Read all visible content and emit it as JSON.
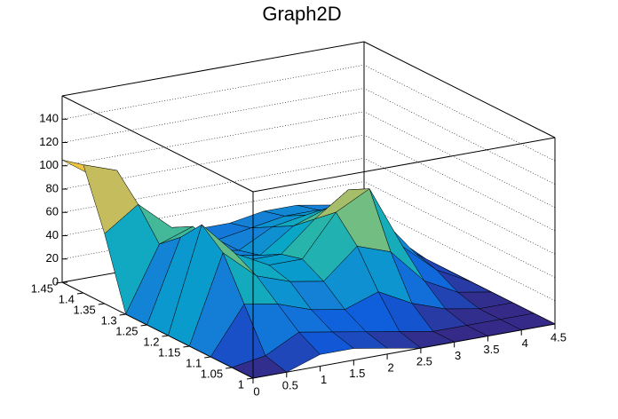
{
  "chart_data": {
    "type": "surface",
    "title": "Graph2D",
    "x": [
      0,
      0.5,
      1,
      1.5,
      2,
      2.5,
      3,
      3.5,
      4,
      4.5
    ],
    "y": [
      1,
      1.05,
      1.1,
      1.15,
      1.2,
      1.25,
      1.3,
      1.35,
      1.4,
      1.45
    ],
    "z": [
      [
        0,
        0,
        10,
        10,
        5,
        0,
        0,
        0,
        0,
        0
      ],
      [
        0,
        5,
        20,
        15,
        10,
        5,
        0,
        0,
        0,
        0
      ],
      [
        0,
        40,
        35,
        25,
        20,
        30,
        15,
        5,
        0,
        0
      ],
      [
        0,
        75,
        50,
        40,
        35,
        60,
        50,
        20,
        5,
        0
      ],
      [
        0,
        90,
        60,
        45,
        45,
        80,
        95,
        40,
        15,
        0
      ],
      [
        0,
        70,
        60,
        40,
        40,
        65,
        85,
        55,
        20,
        0
      ],
      [
        0,
        55,
        65,
        35,
        30,
        50,
        60,
        45,
        25,
        0
      ],
      [
        60,
        80,
        55,
        30,
        25,
        40,
        45,
        40,
        30,
        0
      ],
      [
        110,
        100,
        45,
        30,
        25,
        30,
        35,
        35,
        30,
        0
      ],
      [
        105,
        85,
        40,
        30,
        25,
        25,
        30,
        30,
        25,
        0
      ]
    ],
    "xlim": [
      0,
      4.5
    ],
    "ylim": [
      1,
      1.45
    ],
    "zlim": [
      0,
      160
    ],
    "xticks": [
      0,
      0.5,
      1,
      1.5,
      2,
      2.5,
      3,
      3.5,
      4,
      4.5
    ],
    "yticks": [
      1,
      1.05,
      1.1,
      1.15,
      1.2,
      1.25,
      1.3,
      1.35,
      1.4,
      1.45
    ],
    "zticks": [
      0,
      20,
      40,
      60,
      80,
      100,
      120,
      140
    ],
    "grid": true,
    "colormap": [
      "#352a87",
      "#0f5cdd",
      "#1481d6",
      "#06a4ca",
      "#2eb7a4",
      "#87bf77",
      "#d1bb59",
      "#fec832",
      "#f9fb0e"
    ]
  }
}
